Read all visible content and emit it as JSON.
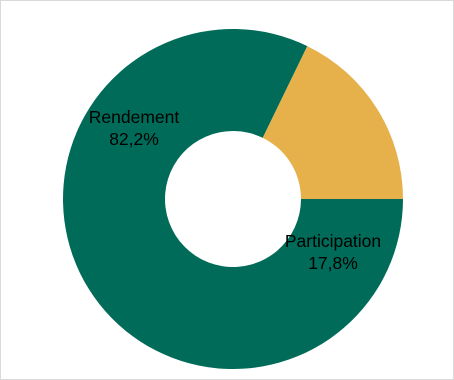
{
  "chart_data": {
    "type": "pie",
    "variant": "donut",
    "categories": [
      "Rendement",
      "Participation"
    ],
    "values": [
      82.2,
      17.8
    ],
    "value_labels": [
      "82,2%",
      "17,8%"
    ],
    "colors": [
      "#006b58",
      "#e6b04a"
    ],
    "title": "",
    "legend": "none",
    "start_angle": "3 o'clock, clockwise"
  }
}
